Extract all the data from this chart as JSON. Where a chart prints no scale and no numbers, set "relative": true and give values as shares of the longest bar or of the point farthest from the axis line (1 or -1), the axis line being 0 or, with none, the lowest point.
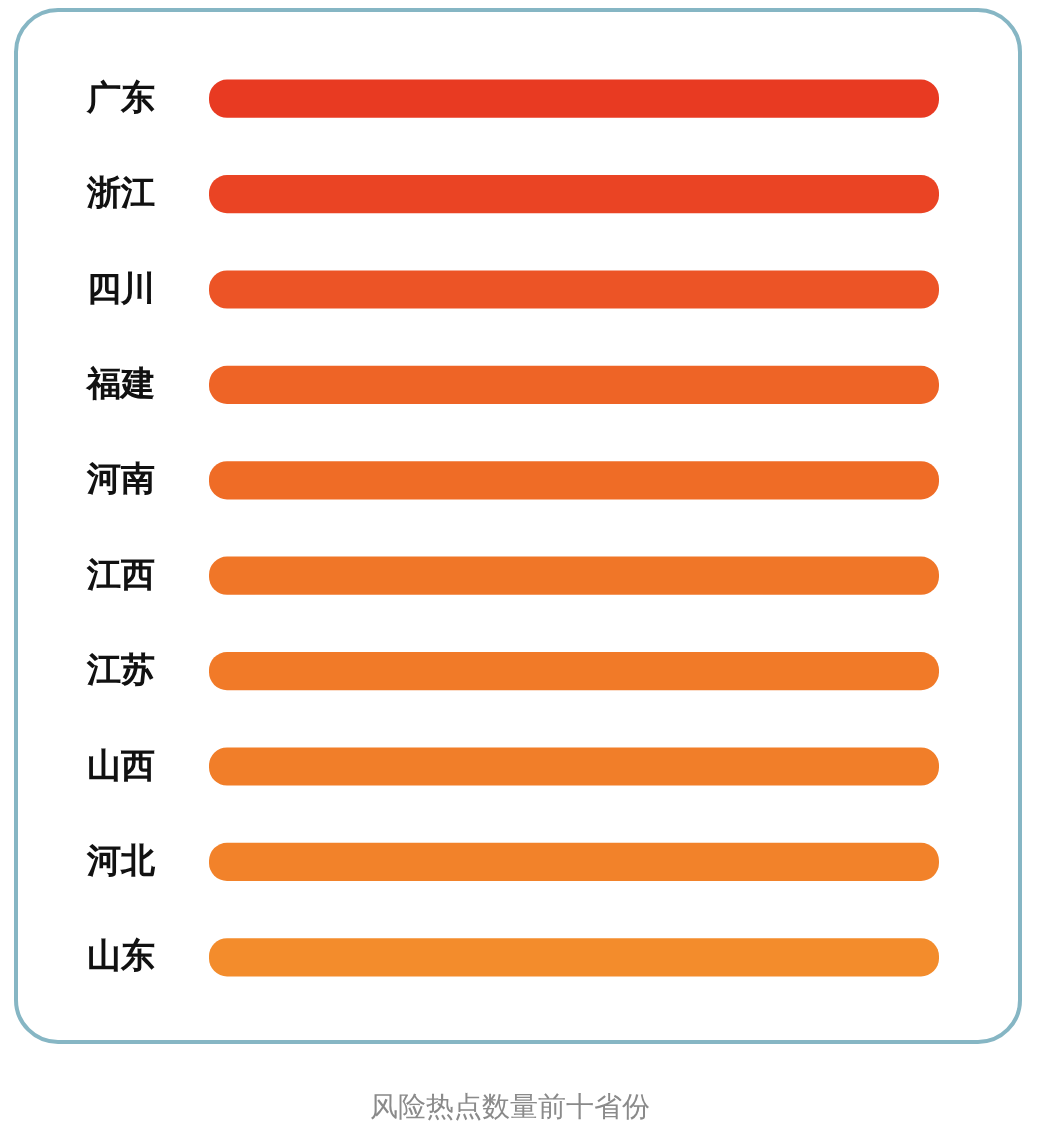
{
  "chart_data": {
    "type": "bar",
    "orientation": "horizontal",
    "relative": true,
    "categories": [
      "广东",
      "浙江",
      "四川",
      "福建",
      "河南",
      "江西",
      "江苏",
      "山西",
      "河北",
      "山东"
    ],
    "values": [
      1,
      1,
      1,
      1,
      1,
      1,
      1,
      1,
      1,
      1
    ],
    "colors": [
      "#e83a22",
      "#ea4424",
      "#ec5426",
      "#ee6426",
      "#ef6c26",
      "#f07628",
      "#f17a28",
      "#f17e29",
      "#f2822a",
      "#f38c2c"
    ],
    "annotations": [
      "风险热点数量前十省份"
    ]
  }
}
